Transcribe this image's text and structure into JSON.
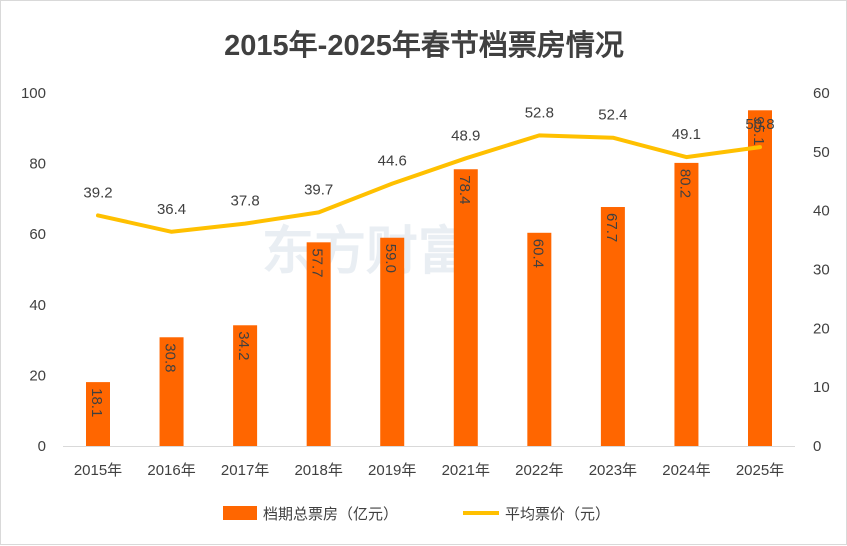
{
  "chart_data": {
    "type": "bar+line",
    "title": "2015年-2025年春节档票房情况",
    "categories": [
      "2015年",
      "2016年",
      "2017年",
      "2018年",
      "2019年",
      "2021年",
      "2022年",
      "2023年",
      "2024年",
      "2025年"
    ],
    "series": [
      {
        "name": "档期总票房（亿元）",
        "type": "bar",
        "axis": "left",
        "values": [
          18.1,
          30.8,
          34.2,
          57.7,
          59.0,
          78.4,
          60.4,
          67.7,
          80.2,
          95.1
        ],
        "labels": [
          "18.1",
          "30.8",
          "34.2",
          "57.7",
          "59.0",
          "78.4",
          "60.4",
          "67.7",
          "80.2",
          "95.1"
        ],
        "color": "#ff6600"
      },
      {
        "name": "平均票价（元）",
        "type": "line",
        "axis": "right",
        "values": [
          39.2,
          36.4,
          37.8,
          39.7,
          44.6,
          48.9,
          52.8,
          52.4,
          49.1,
          50.8
        ],
        "labels": [
          "39.2",
          "36.4",
          "37.8",
          "39.7",
          "44.6",
          "48.9",
          "52.8",
          "52.4",
          "49.1",
          "50.8"
        ],
        "color": "#ffc000"
      }
    ],
    "left_axis": {
      "min": 0,
      "max": 100,
      "step": 20,
      "ticks": [
        "0",
        "20",
        "40",
        "60",
        "80",
        "100"
      ]
    },
    "right_axis": {
      "min": 0,
      "max": 60,
      "step": 10,
      "ticks": [
        "0",
        "10",
        "20",
        "30",
        "40",
        "50",
        "60"
      ]
    },
    "legend_position": "bottom",
    "watermark": "东方财富"
  }
}
